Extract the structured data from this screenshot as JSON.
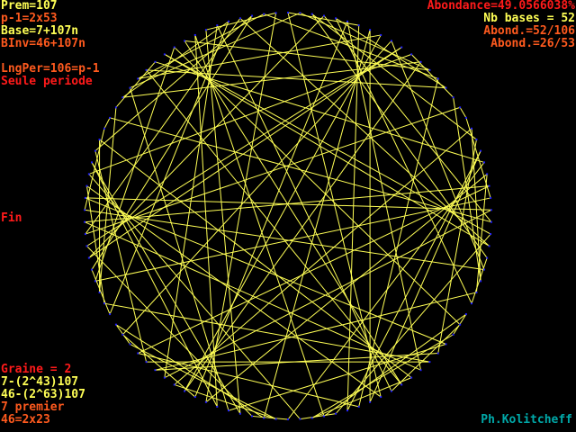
{
  "top_left": {
    "prem": "Prem=107",
    "p_minus_1": "p-1=2x53",
    "base": "Base=7+107n",
    "binv": "BInv=46+107n",
    "lng_per": "LngPer=106=p-1",
    "period_note": "Seule periode"
  },
  "top_right": {
    "abondance": "Abondance=49.0566038%",
    "nb_bases": "Nb bases = 52",
    "abond_1": "Abond.=52/106",
    "abond_2": "Abond.=26/53"
  },
  "middle_left": {
    "fin": "Fin"
  },
  "bottom_left": {
    "graine": "Graine = 2",
    "line1": "7-(2^43)107",
    "line2": "46-(2^63)107",
    "line3": "7 premier",
    "line4": "46=2x23"
  },
  "signature": "Ph.Kolitcheff",
  "figure": {
    "modulus": 107,
    "base": 7,
    "period": 106,
    "line_color": "#ffff55",
    "vertex_color": "#2020ff"
  },
  "colors": {
    "yellow": "#ffff55",
    "orange": "#ff5a1e",
    "red": "#ff1a1a",
    "cyan": "#00a8a8",
    "background": "#000000"
  }
}
